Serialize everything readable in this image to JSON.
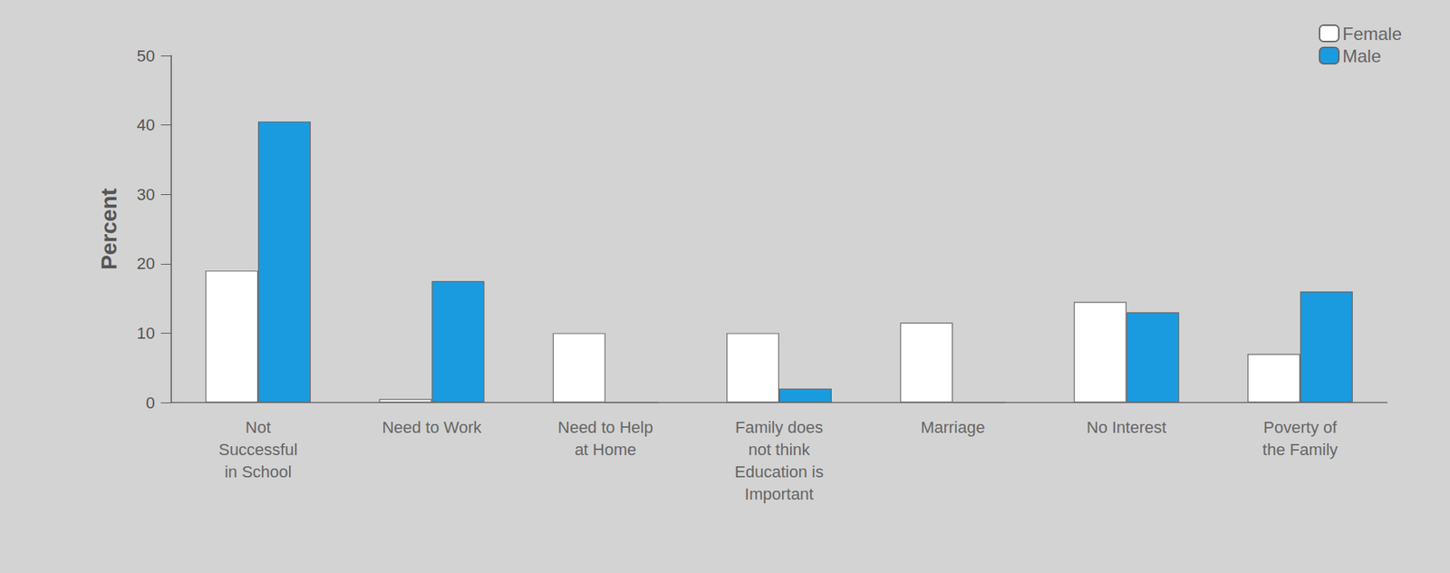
{
  "chart_data": {
    "type": "bar",
    "categories": [
      "Not Successful in School",
      "Need to Work",
      "Need to Help at Home",
      "Family does not think Education is Important",
      "Marriage",
      "No Interest",
      "Poverty of the Family"
    ],
    "series": [
      {
        "name": "Female",
        "color": "#ffffff",
        "values": [
          19,
          0.5,
          10,
          10,
          11.5,
          14.5,
          7
        ]
      },
      {
        "name": "Male",
        "color": "#1a9be0",
        "values": [
          40.5,
          17.5,
          0,
          2,
          0,
          13,
          16
        ]
      }
    ],
    "y_label": "Percent",
    "ylim": [
      0,
      50
    ],
    "yticks": [
      0,
      10,
      20,
      30,
      40,
      50
    ],
    "grid": false,
    "legend": "top-right"
  }
}
